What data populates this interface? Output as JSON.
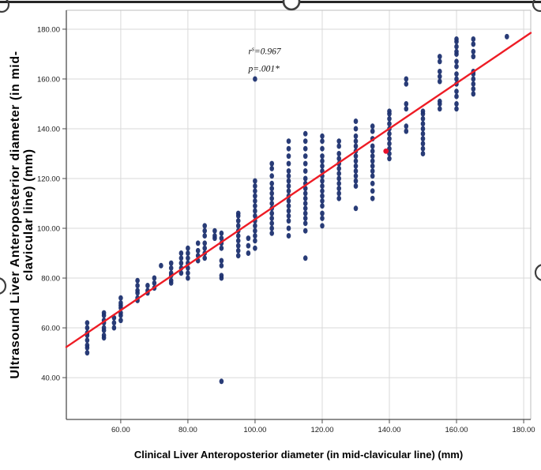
{
  "figure": {
    "x_axis_title": "Clinical Liver Anteroposterior diameter (in mid-clavicular line) (mm)",
    "y_axis_title_line1": "Ultrasound Liver Anteroposterior diameter (in mid-",
    "y_axis_title_line2": "clavicular line) (mm)"
  },
  "chart_data": {
    "type": "scatter",
    "title": "",
    "xlabel": "Clinical Liver Anteroposterior diameter (in mid-clavicular line) (mm)",
    "ylabel": "Ultrasound Liver Anteroposterior diameter (in mid-clavicular line) (mm)",
    "xlim": [
      43.8,
      182.1
    ],
    "ylim": [
      23.2,
      187.6
    ],
    "grid": true,
    "x_ticks": {
      "values": [
        60,
        80,
        100,
        120,
        140,
        160,
        180
      ],
      "labels": [
        "60.00",
        "80.00",
        "100.00",
        "120.00",
        "140.00",
        "160.00",
        "180.00"
      ]
    },
    "y_ticks": {
      "values": [
        40,
        60,
        80,
        100,
        120,
        140,
        160,
        180
      ],
      "labels": [
        "40.00",
        "60.00",
        "80.00",
        "100.00",
        "120.00",
        "140.00",
        "160.00",
        "180.00"
      ]
    },
    "annotation": {
      "r_base": "r",
      "r_sup": "s",
      "r_value": "=0.967",
      "p_value": "p=.001*",
      "x": 98,
      "y_line1": 170,
      "y_line2": 163
    },
    "point_color": "#1e3170",
    "trendline": {
      "color": "#ee1c25",
      "x1": 43.8,
      "y1": 52.3,
      "x2": 182.1,
      "y2": 178.5
    },
    "highlight_point": {
      "x": 139,
      "y": 131,
      "color": "#e8112d"
    },
    "clusters": [
      {
        "x": 50,
        "ys": [
          50,
          52,
          53,
          55,
          57,
          58,
          60,
          62
        ]
      },
      {
        "x": 55,
        "ys": [
          56,
          57,
          59,
          60,
          62,
          63,
          65,
          66
        ]
      },
      {
        "x": 58,
        "ys": [
          60,
          62,
          64
        ]
      },
      {
        "x": 60,
        "ys": [
          63,
          65,
          66,
          68,
          69,
          70,
          72
        ]
      },
      {
        "x": 65,
        "ys": [
          71,
          72,
          74,
          75,
          77,
          79
        ]
      },
      {
        "x": 68,
        "ys": [
          74,
          75,
          77
        ]
      },
      {
        "x": 70,
        "ys": [
          76,
          78,
          80
        ]
      },
      {
        "x": 72,
        "ys": [
          85
        ]
      },
      {
        "x": 75,
        "ys": [
          78,
          79,
          81,
          82,
          84,
          86
        ]
      },
      {
        "x": 78,
        "ys": [
          82,
          84,
          86,
          88,
          90
        ]
      },
      {
        "x": 80,
        "ys": [
          80,
          82,
          84,
          86,
          88,
          90,
          92
        ]
      },
      {
        "x": 83,
        "ys": [
          87,
          89,
          91,
          94
        ]
      },
      {
        "x": 85,
        "ys": [
          88,
          90,
          92,
          94,
          97,
          99,
          101
        ]
      },
      {
        "x": 88,
        "ys": [
          96,
          97,
          99
        ]
      },
      {
        "x": 90,
        "ys": [
          38.5,
          80,
          81,
          85,
          87,
          92,
          94,
          96,
          98
        ]
      },
      {
        "x": 95,
        "ys": [
          89,
          91,
          93,
          95,
          97,
          99,
          101,
          103,
          105,
          106
        ]
      },
      {
        "x": 98,
        "ys": [
          90,
          93,
          96
        ]
      },
      {
        "x": 100,
        "ys": [
          92,
          95,
          97,
          99,
          101,
          103,
          105,
          107,
          109,
          111,
          113,
          115,
          117,
          119,
          160
        ]
      },
      {
        "x": 105,
        "ys": [
          98,
          100,
          102,
          104,
          106,
          108,
          110,
          112,
          114,
          116,
          118,
          121,
          124,
          126
        ]
      },
      {
        "x": 110,
        "ys": [
          97,
          100,
          103,
          105,
          107,
          109,
          111,
          113,
          115,
          117,
          119,
          121,
          123,
          126,
          129,
          132,
          135
        ]
      },
      {
        "x": 115,
        "ys": [
          88,
          99,
          102,
          104,
          106,
          108,
          110,
          112,
          114,
          116,
          118,
          120,
          123,
          126,
          129,
          132,
          135,
          138
        ]
      },
      {
        "x": 120,
        "ys": [
          101,
          104,
          106,
          109,
          111,
          113,
          115,
          117,
          119,
          121,
          123,
          125,
          127,
          129,
          132,
          135,
          137
        ]
      },
      {
        "x": 125,
        "ys": [
          112,
          114,
          116,
          118,
          120,
          122,
          124,
          126,
          128,
          130,
          133,
          135
        ]
      },
      {
        "x": 130,
        "ys": [
          108,
          117,
          119,
          121,
          123,
          125,
          127,
          129,
          131,
          133,
          135,
          137,
          140,
          143
        ]
      },
      {
        "x": 135,
        "ys": [
          112,
          115,
          118,
          121,
          123,
          125,
          127,
          129,
          131,
          133,
          136,
          139,
          141
        ]
      },
      {
        "x": 140,
        "ys": [
          128,
          130,
          132,
          134,
          136,
          138,
          140,
          142,
          144,
          146,
          147
        ]
      },
      {
        "x": 145,
        "ys": [
          139,
          141,
          148,
          150,
          158,
          160
        ]
      },
      {
        "x": 150,
        "ys": [
          130,
          132,
          134,
          136,
          138,
          140,
          142,
          144,
          146,
          147
        ]
      },
      {
        "x": 155,
        "ys": [
          148,
          150,
          151,
          159,
          161,
          163,
          167,
          169
        ]
      },
      {
        "x": 160,
        "ys": [
          148,
          150,
          153,
          155,
          158,
          160,
          162,
          165,
          167,
          170,
          171,
          173,
          175,
          176
        ]
      },
      {
        "x": 165,
        "ys": [
          154,
          156,
          158,
          160,
          162,
          163,
          169,
          171,
          174,
          176
        ]
      },
      {
        "x": 175,
        "ys": [
          177
        ]
      }
    ]
  }
}
